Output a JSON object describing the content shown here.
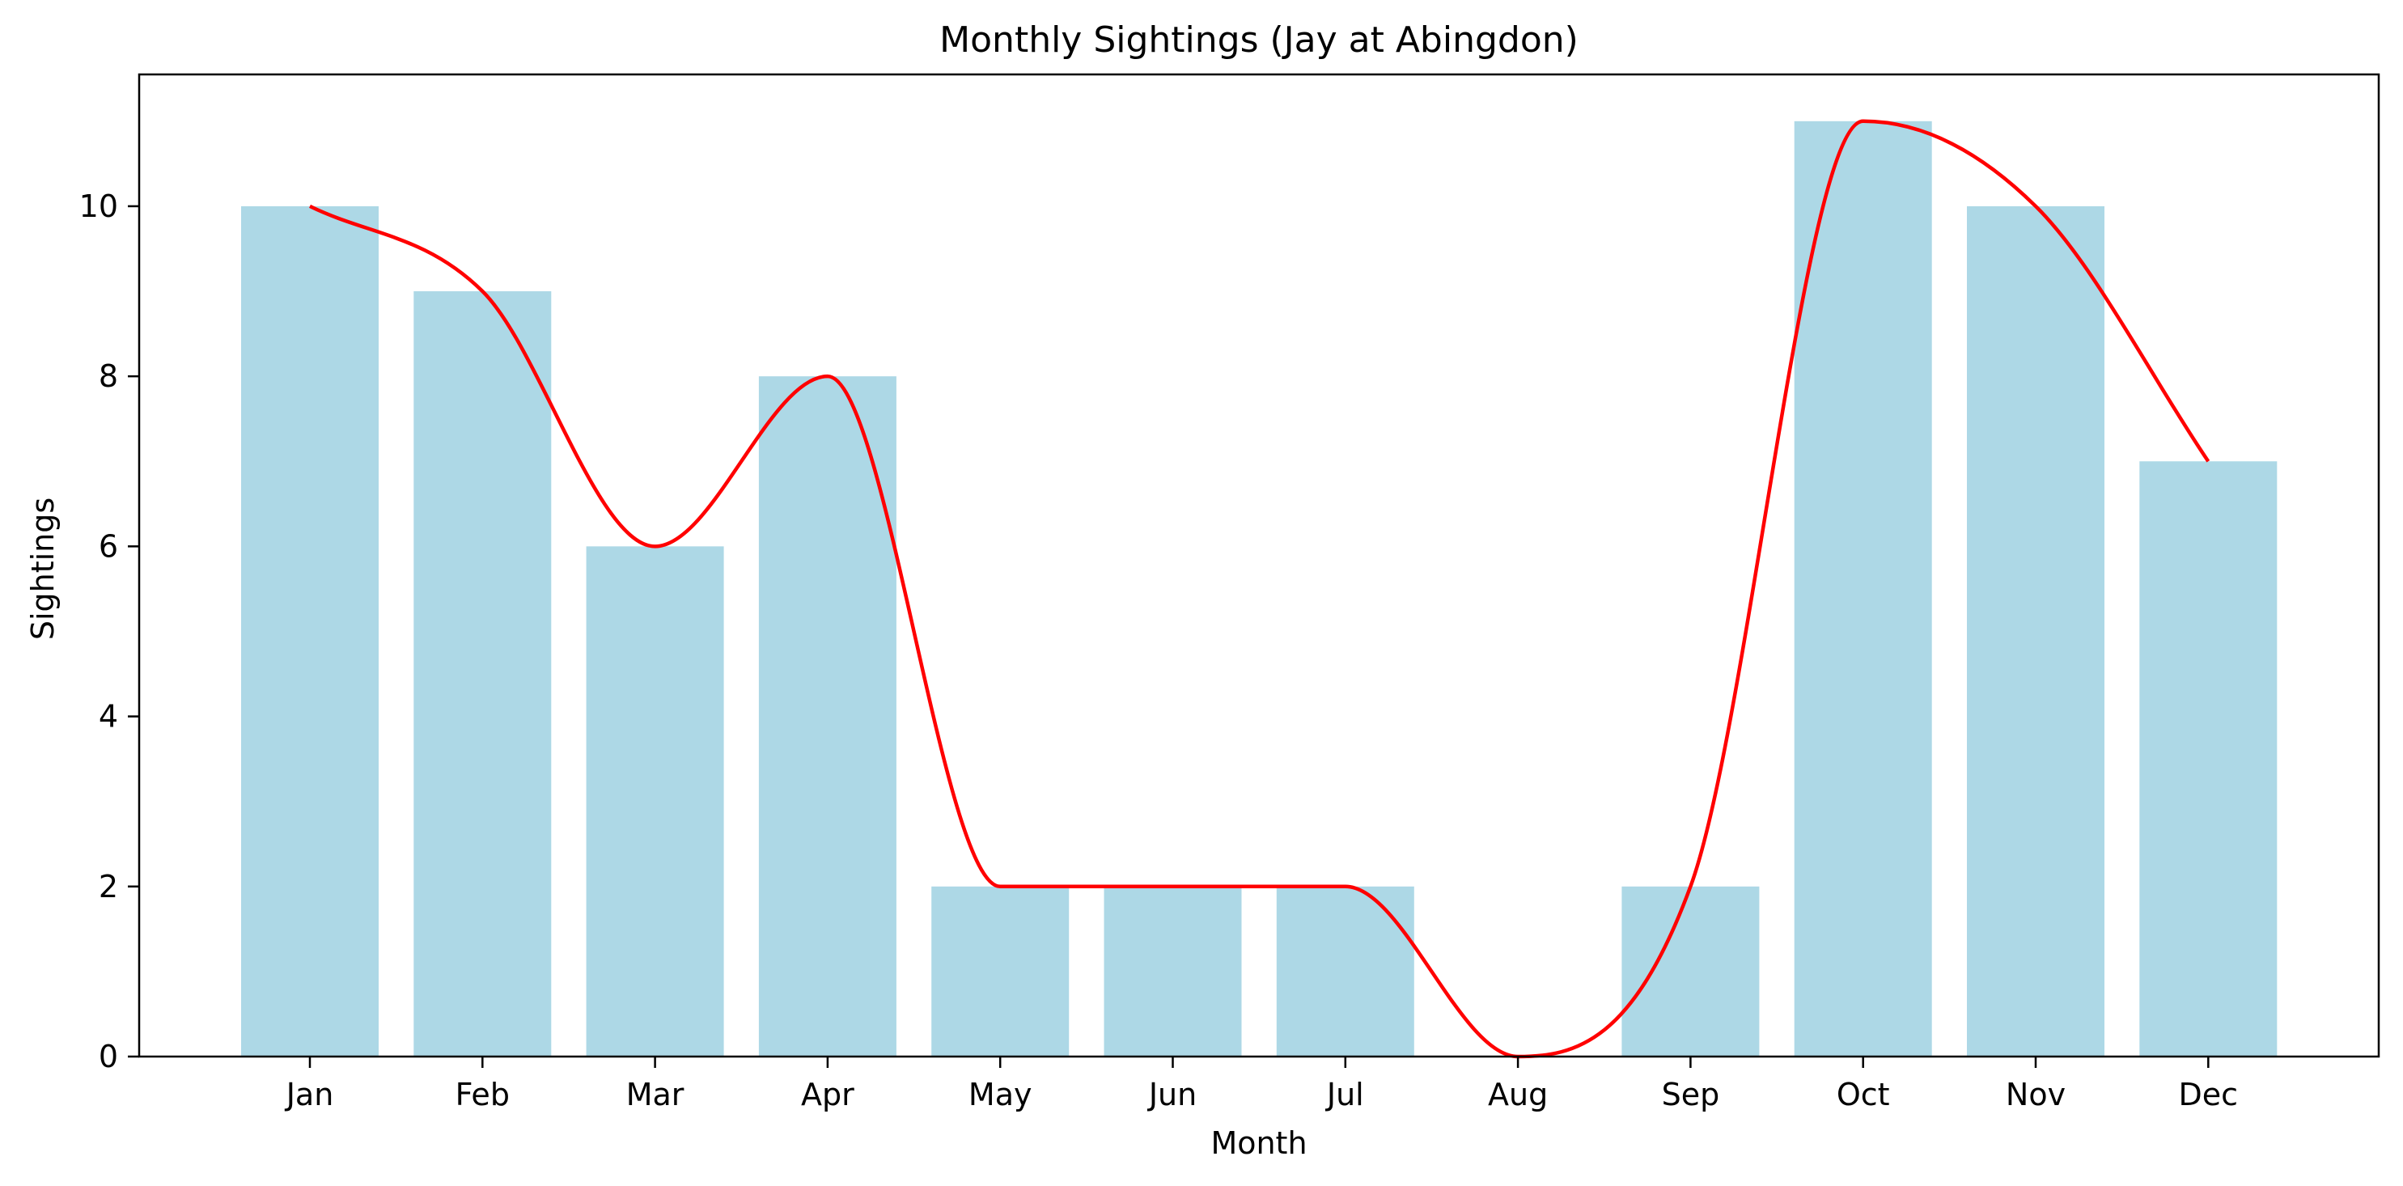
{
  "chart_data": {
    "type": "bar",
    "title": "Monthly Sightings (Jay at Abingdon)",
    "xlabel": "Month",
    "ylabel": "Sightings",
    "categories": [
      "Jan",
      "Feb",
      "Mar",
      "Apr",
      "May",
      "Jun",
      "Jul",
      "Aug",
      "Sep",
      "Oct",
      "Nov",
      "Dec"
    ],
    "values": [
      10,
      9,
      6,
      8,
      2,
      2,
      2,
      0,
      2,
      11,
      10,
      7
    ],
    "ylim": [
      0,
      11.55
    ],
    "yticks": [
      0,
      2,
      4,
      6,
      8,
      10
    ],
    "grid": false,
    "bar_color": "#add8e6",
    "overlay": {
      "type": "line",
      "smooth": true,
      "color": "#ff0000",
      "values": [
        10,
        9,
        6,
        8,
        2,
        2,
        2,
        0,
        2,
        11,
        10,
        7
      ]
    }
  }
}
